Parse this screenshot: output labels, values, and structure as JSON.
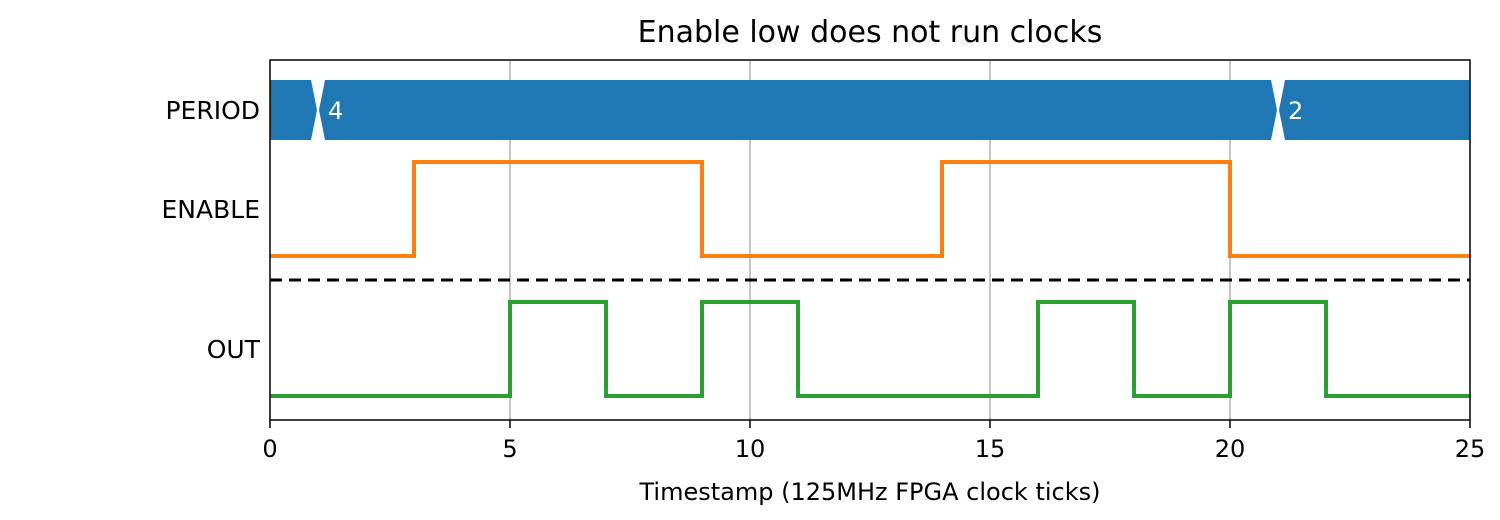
{
  "chart_data": {
    "type": "line",
    "title": "Enable low does not run clocks",
    "xlabel": "Timestamp (125MHz FPGA clock ticks)",
    "xlim": [
      0,
      25
    ],
    "xticks": [
      0,
      5,
      10,
      15,
      20,
      25
    ],
    "grid": "vertical",
    "colors": {
      "bus": "#1f77b4",
      "enable": "#ff7f0e",
      "out": "#2ca02c",
      "grid": "#b0b0b0",
      "separator": "#000000"
    },
    "lanes": [
      {
        "name": "PERIOD",
        "kind": "bus",
        "segments": [
          {
            "start": 0,
            "end": 1,
            "value": ""
          },
          {
            "start": 1,
            "end": 21,
            "value": "4"
          },
          {
            "start": 21,
            "end": 25,
            "value": "2"
          }
        ]
      },
      {
        "name": "ENABLE",
        "kind": "digital",
        "steps": [
          {
            "x": 0,
            "y": 0
          },
          {
            "x": 3,
            "y": 1
          },
          {
            "x": 9,
            "y": 0
          },
          {
            "x": 14,
            "y": 1
          },
          {
            "x": 20,
            "y": 0
          }
        ]
      },
      {
        "name": "OUT",
        "kind": "digital",
        "steps": [
          {
            "x": 0,
            "y": 0
          },
          {
            "x": 5,
            "y": 1
          },
          {
            "x": 7,
            "y": 0
          },
          {
            "x": 9,
            "y": 1
          },
          {
            "x": 11,
            "y": 0
          },
          {
            "x": 16,
            "y": 1
          },
          {
            "x": 18,
            "y": 0
          },
          {
            "x": 20,
            "y": 1
          },
          {
            "x": 22,
            "y": 0
          }
        ]
      }
    ],
    "separator": {
      "after_lane": "ENABLE",
      "style": "dashed"
    }
  }
}
